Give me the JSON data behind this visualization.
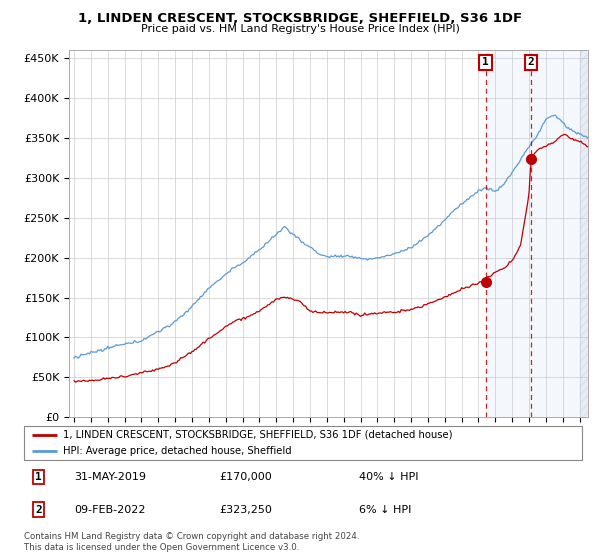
{
  "title": "1, LINDEN CRESCENT, STOCKSBRIDGE, SHEFFIELD, S36 1DF",
  "subtitle": "Price paid vs. HM Land Registry's House Price Index (HPI)",
  "ylim": [
    0,
    460000
  ],
  "yticks": [
    0,
    50000,
    100000,
    150000,
    200000,
    250000,
    300000,
    350000,
    400000,
    450000
  ],
  "ytick_labels": [
    "£0",
    "£50K",
    "£100K",
    "£150K",
    "£200K",
    "£250K",
    "£300K",
    "£350K",
    "£400K",
    "£450K"
  ],
  "legend_entry1": "1, LINDEN CRESCENT, STOCKSBRIDGE, SHEFFIELD, S36 1DF (detached house)",
  "legend_entry2": "HPI: Average price, detached house, Sheffield",
  "sale1_date": "31-MAY-2019",
  "sale1_price": "£170,000",
  "sale1_pct": "40% ↓ HPI",
  "sale1_x": 2019.42,
  "sale1_y": 170000,
  "sale2_date": "09-FEB-2022",
  "sale2_price": "£323,250",
  "sale2_pct": "6% ↓ HPI",
  "sale2_x": 2022.12,
  "sale2_y": 323250,
  "footer1": "Contains HM Land Registry data © Crown copyright and database right 2024.",
  "footer2": "This data is licensed under the Open Government Licence v3.0.",
  "hpi_color": "#5b9bd5",
  "price_color": "#c00000",
  "vline_color": "#c00000",
  "background_color": "#ffffff",
  "grid_color": "#cccccc",
  "xmin": 1995.0,
  "xmax": 2025.5
}
